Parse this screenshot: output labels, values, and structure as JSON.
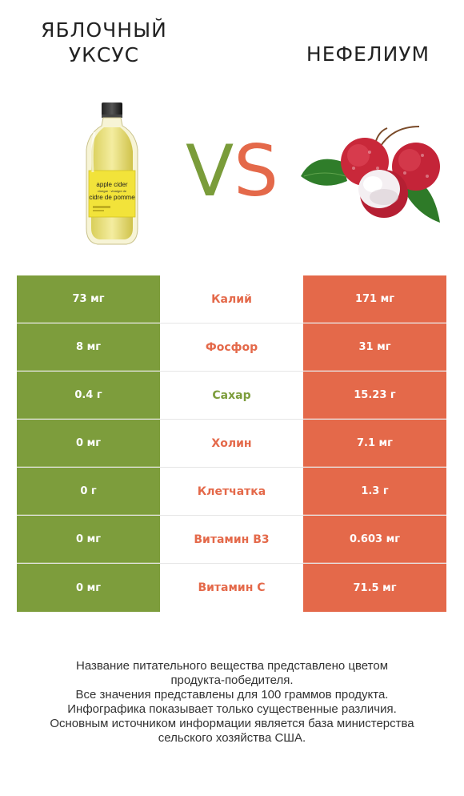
{
  "left_product": {
    "title_line1": "ЯБЛОЧНЫЙ",
    "title_line2": "УКСУС",
    "color": "#7d9d3c",
    "bottle_label_line1": "apple cider",
    "bottle_label_line2": "vinegar · vinaigre de",
    "bottle_label_line3": "cidre de pomme"
  },
  "right_product": {
    "title": "НЕФЕЛИУМ",
    "color": "#e4694a"
  },
  "vs": {
    "v": "V",
    "s": "S"
  },
  "rows": [
    {
      "left": "73 мг",
      "nutrient": "Калий",
      "right": "171 мг",
      "winner": "right"
    },
    {
      "left": "8 мг",
      "nutrient": "Фосфор",
      "right": "31 мг",
      "winner": "right"
    },
    {
      "left": "0.4 г",
      "nutrient": "Сахар",
      "right": "15.23 г",
      "winner": "left"
    },
    {
      "left": "0 мг",
      "nutrient": "Холин",
      "right": "7.1 мг",
      "winner": "right"
    },
    {
      "left": "0 г",
      "nutrient": "Клетчатка",
      "right": "1.3 г",
      "winner": "right"
    },
    {
      "left": "0 мг",
      "nutrient": "Витамин B3",
      "right": "0.603 мг",
      "winner": "right"
    },
    {
      "left": "0 мг",
      "nutrient": "Витамин C",
      "right": "71.5 мг",
      "winner": "right"
    }
  ],
  "footer": {
    "line1": "Название питательного вещества представлено цветом",
    "line2": "продукта-победителя.",
    "line3": "Все значения представлены для 100 граммов продукта.",
    "line4": "Инфографика показывает только существенные различия.",
    "line5": "Основным источником информации является база министерства",
    "line6": "сельского хозяйства США."
  }
}
